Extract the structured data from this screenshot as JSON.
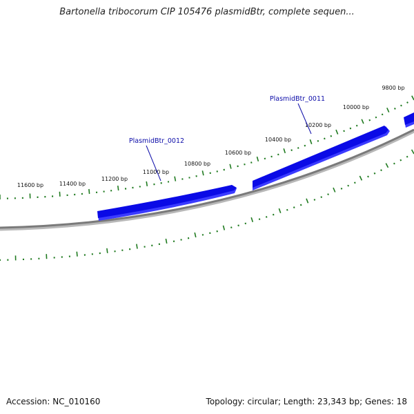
{
  "title": "Bartonella tribocorum CIP 105476 plasmidBtr, complete sequen...",
  "footer": {
    "accession": "Accession: NC_010160",
    "summary": "Topology: circular; Length: 23,343 bp; Genes: 18"
  },
  "colors": {
    "tick": "#1f7a1f",
    "gene": "#0a0ae6",
    "gene_shadow": "#3b3bff",
    "backbone": "#7a7a7a",
    "gene_label": "#0b0ba8"
  },
  "map": {
    "tick_labels": [
      {
        "label": "9800 bp",
        "bp": 9800
      },
      {
        "label": "10000 bp",
        "bp": 10000
      },
      {
        "label": "10200 bp",
        "bp": 10200
      },
      {
        "label": "10400 bp",
        "bp": 10400
      },
      {
        "label": "10600 bp",
        "bp": 10600
      },
      {
        "label": "10800 bp",
        "bp": 10800
      },
      {
        "label": "11000 bp",
        "bp": 11000
      },
      {
        "label": "11200 bp",
        "bp": 11200
      },
      {
        "label": "11400 bp",
        "bp": 11400
      },
      {
        "label": "11600 bp",
        "bp": 11600
      }
    ],
    "genes": [
      {
        "label": "PlasmidBtr_0011",
        "strand": "forward"
      },
      {
        "label": "PlasmidBtr_0012",
        "strand": "forward"
      }
    ]
  }
}
